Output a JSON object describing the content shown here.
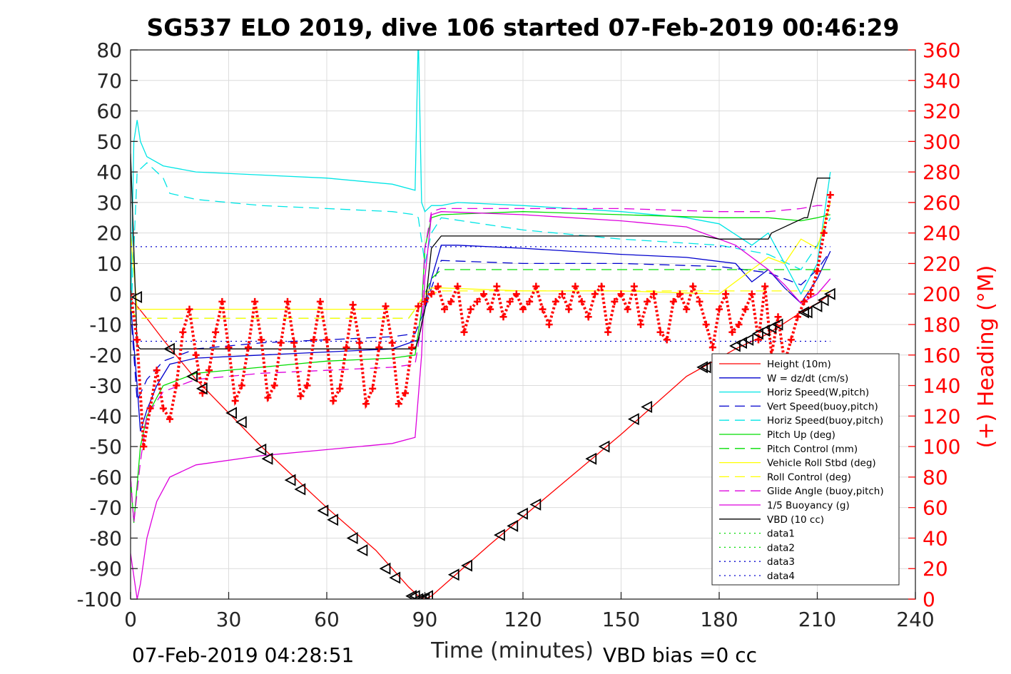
{
  "chart_data": {
    "type": "line",
    "title": "SG537 ELO 2019, dive 106 started 07-Feb-2019 00:46:29",
    "xlabel": "Time (minutes)",
    "ylabel": "",
    "y2label": "(+) Heading (°M)",
    "xlim": [
      0,
      240
    ],
    "ylim": [
      -100,
      80
    ],
    "y2lim": [
      0,
      360
    ],
    "xticks": [
      "0",
      "30",
      "60",
      "90",
      "120",
      "150",
      "180",
      "210",
      "240"
    ],
    "yticks": [
      "80",
      "70",
      "60",
      "50",
      "40",
      "30",
      "20",
      "10",
      "0",
      "-10",
      "-20",
      "-30",
      "-40",
      "-50",
      "-60",
      "-70",
      "-80",
      "-90",
      "-100"
    ],
    "y2ticks": [
      "360",
      "340",
      "320",
      "300",
      "280",
      "260",
      "240",
      "220",
      "200",
      "180",
      "160",
      "140",
      "120",
      "100",
      "80",
      "60",
      "40",
      "20",
      "0"
    ],
    "grid": true,
    "legend_position": "lower-right",
    "footer_left": "07-Feb-2019 04:28:51",
    "footer_right": "VBD bias =0 cc",
    "series": [
      {
        "name": "Height (10m)",
        "color": "#ff0000",
        "style": "solid",
        "x": [
          0,
          2,
          5,
          10,
          20,
          40,
          60,
          75,
          85,
          88,
          90,
          92,
          110,
          130,
          150,
          170,
          185,
          195,
          205,
          210,
          214
        ],
        "y": [
          -2,
          -4,
          -8,
          -15,
          -28,
          -50,
          -70,
          -84,
          -96,
          -99,
          -100,
          -99,
          -82,
          -64,
          -46,
          -27,
          -18,
          -13,
          -6,
          -3,
          0
        ]
      },
      {
        "name": "W = dz/dt (cm/s)",
        "color": "#0000cd",
        "style": "solid",
        "x": [
          0,
          2,
          3,
          5,
          8,
          12,
          20,
          40,
          60,
          80,
          88,
          90,
          92,
          95,
          100,
          120,
          150,
          170,
          185,
          190,
          195,
          200,
          205,
          210,
          214
        ],
        "y": [
          -3,
          -30,
          -45,
          -38,
          -30,
          -23,
          -21,
          -20,
          -19,
          -18,
          -15,
          -5,
          5,
          16,
          16,
          15,
          13,
          12,
          10,
          4,
          8,
          2,
          -3,
          5,
          14
        ]
      },
      {
        "name": "Horiz Speed(W,pitch)",
        "color": "#00e5e5",
        "style": "solid",
        "x": [
          0,
          1,
          2,
          3,
          5,
          10,
          20,
          40,
          60,
          80,
          87,
          88,
          89,
          90,
          92,
          95,
          100,
          120,
          150,
          170,
          180,
          190,
          195,
          200,
          205,
          210,
          214
        ],
        "y": [
          -10,
          50,
          57,
          50,
          45,
          42,
          40,
          39,
          38,
          36,
          34,
          85,
          30,
          27,
          29,
          29,
          30,
          29,
          27,
          25,
          23,
          16,
          20,
          10,
          0,
          10,
          40
        ]
      },
      {
        "name": "Vert Speed(buoy,pitch)",
        "color": "#0000cd",
        "style": "dashed",
        "x": [
          0,
          2,
          5,
          10,
          20,
          40,
          60,
          80,
          87,
          90,
          92,
          95,
          120,
          150,
          180,
          195,
          205,
          210,
          214
        ],
        "y": [
          -5,
          -35,
          -28,
          -22,
          -18,
          -16,
          -15,
          -14,
          -13,
          -5,
          2,
          11,
          10,
          10,
          9,
          7,
          3,
          8,
          14
        ]
      },
      {
        "name": "Horiz Speed(buoy,pitch)",
        "color": "#00e5e5",
        "style": "dashed",
        "x": [
          0,
          2,
          5,
          10,
          12,
          20,
          40,
          60,
          80,
          87,
          88,
          90,
          92,
          95,
          120,
          150,
          180,
          195,
          205,
          210,
          214
        ],
        "y": [
          -10,
          40,
          43,
          38,
          33,
          31,
          29,
          28,
          27,
          26,
          25,
          10,
          20,
          25,
          21,
          18,
          16,
          13,
          8,
          16,
          25
        ]
      },
      {
        "name": "Pitch Up (deg)",
        "color": "#00dd00",
        "style": "solid",
        "x": [
          0,
          1,
          3,
          5,
          10,
          20,
          40,
          60,
          80,
          87,
          89,
          90,
          92,
          95,
          120,
          150,
          180,
          195,
          205,
          210,
          214
        ],
        "y": [
          -60,
          -75,
          -50,
          -40,
          -30,
          -26,
          -24,
          -22,
          -21,
          -20,
          -5,
          15,
          25,
          26,
          27,
          26,
          25,
          25,
          24,
          25,
          26
        ]
      },
      {
        "name": "Pitch Control (mm)",
        "color": "#00dd00",
        "style": "dashed",
        "x": [
          0,
          2,
          3,
          85,
          87,
          90,
          92,
          95,
          214
        ],
        "y": [
          -5,
          -8,
          -8,
          -8,
          -5,
          0,
          5,
          8,
          8
        ]
      },
      {
        "name": "Vehicle Roll Stbd (deg)",
        "color": "#ffff00",
        "style": "solid",
        "x": [
          0,
          2,
          5,
          10,
          20,
          40,
          60,
          80,
          87,
          90,
          92,
          95,
          120,
          150,
          180,
          190,
          195,
          200,
          205,
          210,
          214
        ],
        "y": [
          20,
          -5,
          -5,
          -5,
          -5,
          -5,
          -5,
          -5,
          -5,
          0,
          2,
          2,
          1,
          1,
          0,
          8,
          12,
          10,
          18,
          15,
          30
        ]
      },
      {
        "name": "Roll Control (deg)",
        "color": "#ffff00",
        "style": "dashed",
        "x": [
          0,
          2,
          5,
          85,
          87,
          90,
          92,
          95,
          214
        ],
        "y": [
          -5,
          -8,
          -8,
          -8,
          -5,
          0,
          0,
          1,
          1
        ]
      },
      {
        "name": "Glide Angle (buoy,pitch)",
        "color": "#dd00dd",
        "style": "dashed",
        "x": [
          0,
          1,
          3,
          5,
          10,
          20,
          40,
          60,
          80,
          87,
          89,
          90,
          92,
          95,
          120,
          150,
          180,
          195,
          205,
          210,
          214
        ],
        "y": [
          -60,
          -75,
          -55,
          -40,
          -32,
          -28,
          -26,
          -25,
          -24,
          -23,
          -10,
          15,
          27,
          28,
          28,
          28,
          27,
          27,
          28,
          29,
          29
        ]
      },
      {
        "name": "1/5 Buoyancy (g)",
        "color": "#dd00dd",
        "style": "solid",
        "x": [
          0,
          2,
          3,
          5,
          8,
          12,
          20,
          40,
          60,
          80,
          87,
          89,
          90,
          92,
          95,
          120,
          150,
          170,
          185,
          195,
          200,
          205,
          210,
          214
        ],
        "y": [
          -85,
          -100,
          -95,
          -80,
          -68,
          -60,
          -56,
          -53,
          -51,
          -49,
          -47,
          -20,
          5,
          26,
          27,
          26,
          24,
          22,
          16,
          8,
          3,
          -3,
          0,
          5
        ]
      },
      {
        "name": "VBD (10 cc)",
        "color": "#000000",
        "style": "solid",
        "x": [
          0,
          2,
          3,
          87,
          88,
          90,
          92,
          95,
          150,
          175,
          180,
          195,
          196,
          206,
          207,
          210,
          214
        ],
        "y": [
          46,
          -17,
          -18,
          -18,
          -15,
          -5,
          15,
          19,
          19,
          19,
          18,
          18,
          20,
          25,
          25,
          38,
          38
        ]
      },
      {
        "name": "data1",
        "color": "#00dd00",
        "style": "dotted",
        "x": [],
        "y": []
      },
      {
        "name": "data2",
        "color": "#00dd00",
        "style": "dotted",
        "x": [],
        "y": []
      },
      {
        "name": "data3",
        "color": "#0000cd",
        "style": "dotted",
        "x": [
          0,
          214
        ],
        "y": [
          15.5,
          15.5
        ]
      },
      {
        "name": "data4",
        "color": "#0000cd",
        "style": "dotted",
        "x": [
          0,
          214
        ],
        "y": [
          -15.5,
          -15.5
        ]
      }
    ],
    "heading_scatter": {
      "color": "#ff0000",
      "marker": "+",
      "axis": "right",
      "x": [
        0,
        2,
        4,
        6,
        8,
        10,
        12,
        14,
        16,
        18,
        20,
        22,
        24,
        26,
        28,
        30,
        32,
        34,
        36,
        38,
        40,
        42,
        44,
        46,
        48,
        50,
        52,
        54,
        56,
        58,
        60,
        62,
        64,
        66,
        68,
        70,
        72,
        74,
        76,
        78,
        80,
        82,
        84,
        86,
        88,
        90,
        92,
        94,
        96,
        98,
        100,
        102,
        104,
        106,
        108,
        110,
        112,
        114,
        116,
        118,
        120,
        122,
        124,
        126,
        128,
        130,
        132,
        134,
        136,
        138,
        140,
        142,
        144,
        146,
        148,
        150,
        152,
        154,
        156,
        158,
        160,
        162,
        164,
        166,
        168,
        170,
        172,
        174,
        176,
        178,
        180,
        182,
        184,
        186,
        188,
        190,
        192,
        194,
        196,
        198,
        200,
        202,
        204,
        206,
        208,
        210,
        212,
        214
      ],
      "y": [
        200,
        170,
        100,
        125,
        150,
        125,
        118,
        140,
        175,
        190,
        160,
        135,
        150,
        175,
        195,
        165,
        130,
        140,
        165,
        195,
        170,
        132,
        140,
        168,
        195,
        168,
        133,
        140,
        170,
        195,
        170,
        130,
        138,
        165,
        193,
        168,
        128,
        138,
        165,
        192,
        168,
        128,
        135,
        165,
        192,
        195,
        200,
        205,
        190,
        195,
        205,
        175,
        190,
        195,
        200,
        190,
        205,
        185,
        195,
        200,
        190,
        195,
        205,
        190,
        180,
        195,
        200,
        190,
        205,
        195,
        185,
        200,
        205,
        175,
        195,
        200,
        190,
        205,
        180,
        195,
        200,
        175,
        170,
        195,
        200,
        190,
        205,
        195,
        180,
        165,
        190,
        200,
        175,
        180,
        190,
        200,
        170,
        205,
        160,
        185,
        155,
        170,
        185,
        195,
        200,
        215,
        240,
        265
      ]
    },
    "depth_markers": {
      "color": "#000000",
      "marker": "triangle-left",
      "x": [
        2,
        12,
        19,
        22,
        31,
        34,
        40,
        42,
        49,
        52,
        59,
        62,
        68,
        71,
        78,
        81,
        86,
        87,
        88,
        89,
        90,
        91,
        99,
        103,
        113,
        117,
        120,
        124,
        141,
        145,
        154,
        158,
        175,
        176,
        185,
        187,
        189,
        192,
        194,
        196,
        198,
        206,
        207,
        210,
        212,
        214
      ],
      "y": [
        -1,
        -18,
        -27,
        -31,
        -39,
        -42,
        -51,
        -54,
        -61,
        -64,
        -71,
        -74,
        -80,
        -84,
        -90,
        -93,
        -99,
        -99,
        -100,
        -100,
        -100,
        -99,
        -92,
        -89,
        -79,
        -76,
        -72,
        -69,
        -54,
        -50,
        -41,
        -37,
        -24,
        -24,
        -17,
        -16,
        -15,
        -13,
        -12,
        -11,
        -10,
        -6,
        -6,
        -4,
        -2,
        0
      ]
    }
  }
}
